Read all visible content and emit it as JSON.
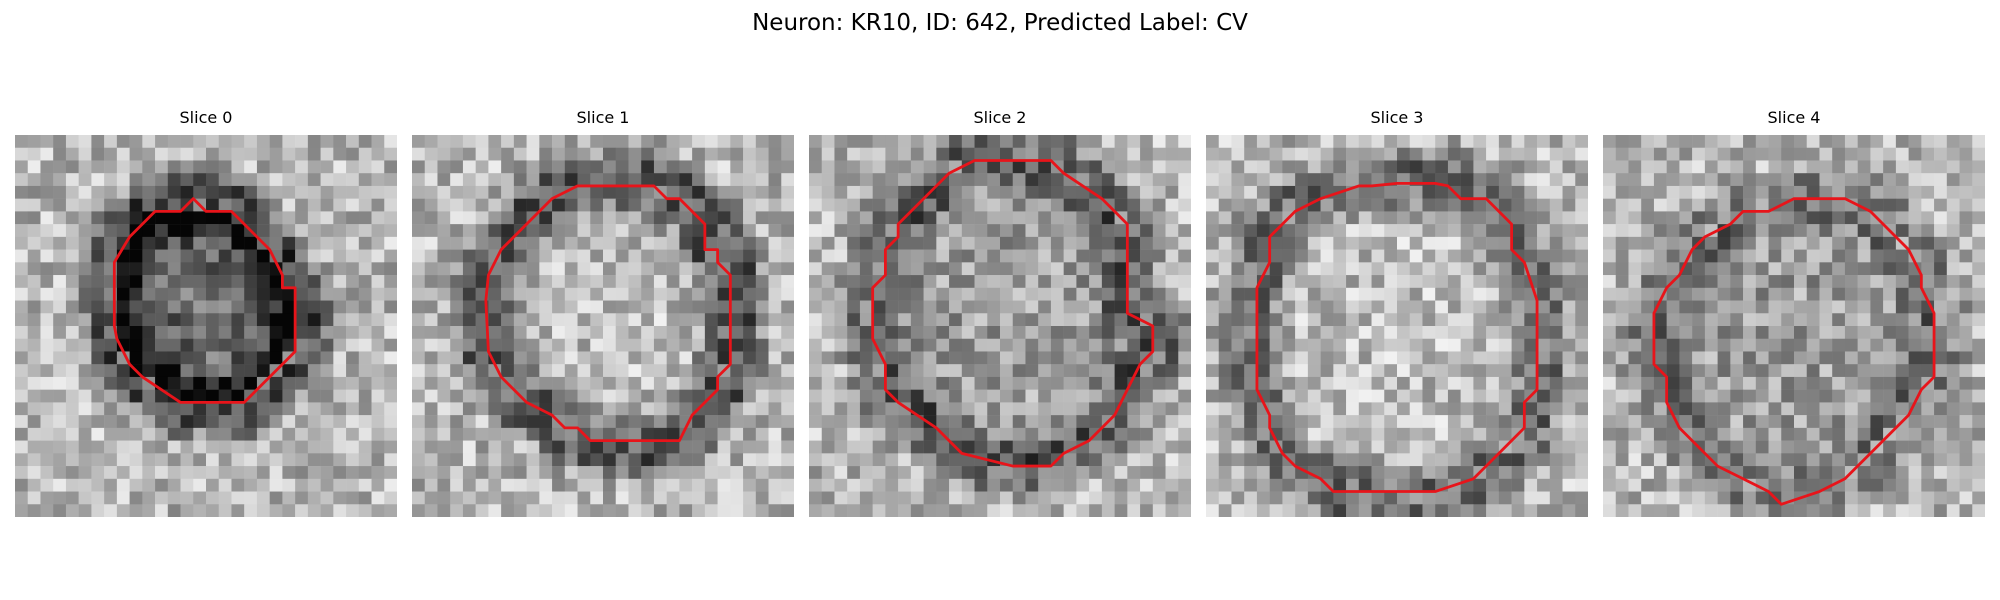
{
  "title": "Neuron: KR10, ID: 642, Predicted Label: CV",
  "colors": {
    "contour": "#e8141a",
    "background": "#ffffff"
  },
  "panels": [
    {
      "label": "Slice 0",
      "seed": 11,
      "darkness": 0.85,
      "interior": "dark"
    },
    {
      "label": "Slice 1",
      "seed": 23,
      "darkness": 0.7,
      "interior": "light"
    },
    {
      "label": "Slice 2",
      "seed": 37,
      "darkness": 0.55,
      "interior": "mid"
    },
    {
      "label": "Slice 3",
      "seed": 41,
      "darkness": 0.55,
      "interior": "light"
    },
    {
      "label": "Slice 4",
      "seed": 53,
      "darkness": 0.4,
      "interior": "mid"
    }
  ]
}
